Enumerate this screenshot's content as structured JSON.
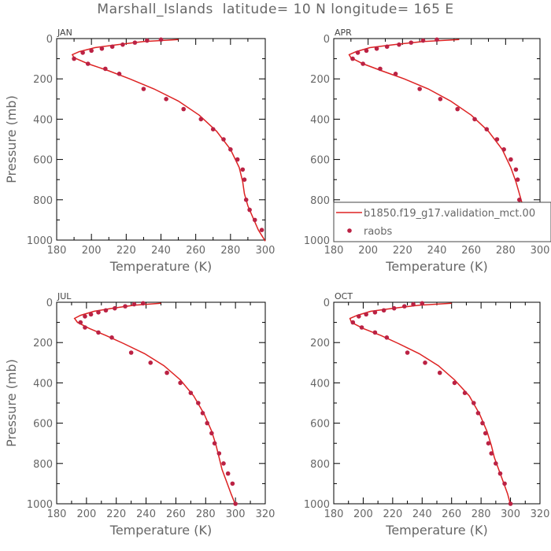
{
  "title": "Marshall_Islands  latitude= 10 N longitude= 165 E",
  "colors": {
    "model": "#dd2222",
    "obs": "#bb2244",
    "axis": "#000000",
    "text": "#666666"
  },
  "chart_data": [
    {
      "type": "line",
      "panel": "JAN",
      "xlabel": "Temperature (K)",
      "ylabel": "Pressure (mb)",
      "xlim": [
        180,
        300
      ],
      "ylim": [
        1000,
        0
      ],
      "xticks": [
        180,
        200,
        220,
        240,
        260,
        280,
        300
      ],
      "yticks": [
        0,
        200,
        400,
        600,
        800,
        1000
      ],
      "series": [
        {
          "name": "b1850.f19_g17.validation_mct.00",
          "kind": "line",
          "x": [
            250,
            230,
            215,
            202,
            193,
            189,
            190,
            198,
            210,
            222,
            236,
            250,
            262,
            272,
            280,
            285,
            287,
            288,
            290,
            293,
            296,
            300
          ],
          "y": [
            5,
            15,
            30,
            45,
            65,
            80,
            95,
            125,
            160,
            200,
            250,
            310,
            380,
            460,
            550,
            640,
            710,
            770,
            830,
            890,
            950,
            1005
          ]
        },
        {
          "name": "raobs",
          "kind": "scatter",
          "x": [
            240,
            232,
            225,
            218,
            212,
            206,
            200,
            195,
            190,
            198,
            208,
            216,
            230,
            243,
            253,
            263,
            270,
            276,
            280,
            284,
            287,
            288,
            289,
            291,
            294,
            298
          ],
          "y": [
            5,
            10,
            20,
            30,
            40,
            50,
            60,
            70,
            100,
            125,
            150,
            175,
            250,
            300,
            350,
            400,
            450,
            500,
            550,
            600,
            650,
            700,
            800,
            850,
            900,
            950
          ]
        }
      ]
    },
    {
      "type": "line",
      "panel": "APR",
      "xlabel": "Temperature (K)",
      "ylabel": "",
      "xlim": [
        180,
        300
      ],
      "ylim": [
        1000,
        0
      ],
      "xticks": [
        180,
        200,
        220,
        240,
        260,
        280,
        300
      ],
      "yticks": [
        0,
        200,
        400,
        600,
        800,
        1000
      ],
      "legend": {
        "placement": "bottom-right",
        "entries": [
          "b1850.f19_g17.validation_mct.00",
          "raobs"
        ]
      },
      "series": [
        {
          "name": "b1850.f19_g17.validation_mct.00",
          "kind": "line",
          "x": [
            253,
            232,
            215,
            201,
            193,
            189,
            190,
            197,
            208,
            221,
            235,
            248,
            260,
            270,
            278,
            283,
            286,
            288,
            290,
            294,
            298,
            300
          ],
          "y": [
            5,
            15,
            30,
            45,
            65,
            80,
            95,
            125,
            160,
            200,
            250,
            310,
            380,
            460,
            550,
            640,
            710,
            770,
            830,
            890,
            950,
            1005
          ]
        },
        {
          "name": "raobs",
          "kind": "scatter",
          "x": [
            240,
            232,
            225,
            218,
            211,
            205,
            199,
            194,
            191,
            197,
            207,
            216,
            230,
            242,
            252,
            262,
            269,
            275,
            279,
            283,
            286,
            287,
            288,
            289,
            291,
            294
          ],
          "y": [
            5,
            10,
            20,
            30,
            40,
            50,
            60,
            70,
            100,
            125,
            150,
            175,
            250,
            300,
            350,
            400,
            450,
            500,
            550,
            600,
            650,
            700,
            800,
            850,
            900,
            950
          ]
        }
      ]
    },
    {
      "type": "line",
      "panel": "JUL",
      "xlabel": "Temperature (K)",
      "ylabel": "Pressure (mb)",
      "xlim": [
        180,
        320
      ],
      "ylim": [
        1000,
        0
      ],
      "xticks": [
        180,
        200,
        220,
        240,
        260,
        280,
        300,
        320
      ],
      "yticks": [
        0,
        200,
        400,
        600,
        800,
        1000
      ],
      "series": [
        {
          "name": "b1850.f19_g17.validation_mct.00",
          "kind": "line",
          "x": [
            250,
            232,
            217,
            205,
            196,
            192,
            194,
            202,
            213,
            225,
            239,
            252,
            263,
            272,
            279,
            284,
            287,
            289,
            291,
            294,
            297,
            300
          ],
          "y": [
            5,
            15,
            30,
            45,
            65,
            80,
            100,
            130,
            165,
            205,
            255,
            315,
            385,
            465,
            555,
            640,
            710,
            770,
            830,
            890,
            950,
            1005
          ]
        },
        {
          "name": "raobs",
          "kind": "scatter",
          "x": [
            238,
            232,
            226,
            219,
            213,
            208,
            203,
            199,
            196,
            199,
            208,
            217,
            230,
            243,
            254,
            263,
            270,
            275,
            278,
            281,
            284,
            286,
            289,
            292,
            295,
            298,
            300
          ],
          "y": [
            5,
            10,
            20,
            30,
            40,
            50,
            60,
            70,
            100,
            125,
            150,
            175,
            250,
            300,
            350,
            400,
            450,
            500,
            550,
            600,
            650,
            700,
            750,
            800,
            850,
            900,
            1000
          ]
        }
      ]
    },
    {
      "type": "line",
      "panel": "OCT",
      "xlabel": "Temperature (K)",
      "ylabel": "",
      "xlim": [
        180,
        320
      ],
      "ylim": [
        1000,
        0
      ],
      "xticks": [
        180,
        200,
        220,
        240,
        260,
        280,
        300,
        320
      ],
      "yticks": [
        0,
        200,
        400,
        600,
        800,
        1000
      ],
      "series": [
        {
          "name": "b1850.f19_g17.validation_mct.00",
          "kind": "line",
          "x": [
            260,
            238,
            220,
            205,
            196,
            191,
            192,
            200,
            212,
            224,
            238,
            251,
            262,
            272,
            279,
            284,
            287,
            289,
            292,
            295,
            298,
            300
          ],
          "y": [
            5,
            15,
            30,
            45,
            65,
            80,
            100,
            130,
            165,
            205,
            255,
            315,
            385,
            465,
            555,
            640,
            710,
            770,
            830,
            890,
            950,
            1005
          ]
        },
        {
          "name": "raobs",
          "kind": "scatter",
          "x": [
            240,
            234,
            228,
            221,
            214,
            208,
            202,
            197,
            193,
            199,
            208,
            216,
            230,
            242,
            252,
            262,
            269,
            275,
            278,
            281,
            283,
            285,
            287,
            290,
            293,
            296,
            300
          ],
          "y": [
            5,
            10,
            20,
            30,
            40,
            50,
            60,
            70,
            100,
            125,
            150,
            175,
            250,
            300,
            350,
            400,
            450,
            500,
            550,
            600,
            650,
            700,
            750,
            800,
            850,
            900,
            1000
          ]
        }
      ]
    }
  ]
}
